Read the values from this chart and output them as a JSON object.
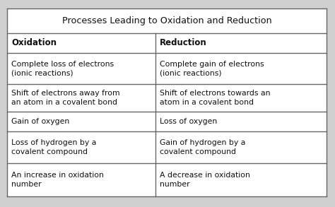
{
  "title": "Processes Leading to Oxidation and Reduction",
  "col_headers": [
    "Oxidation",
    "Reduction"
  ],
  "rows": [
    [
      "Complete loss of electrons\n(ionic reactions)",
      "Complete gain of electrons\n(ionic reactions)"
    ],
    [
      "Shift of electrons away from\nan atom in a covalent bond",
      "Shift of electrons towards an\natom in a covalent bond"
    ],
    [
      "Gain of oxygen",
      "Loss of oxygen"
    ],
    [
      "Loss of hydrogen by a\ncovalent compound",
      "Gain of hydrogen by a\ncovalent compound"
    ],
    [
      "An increase in oxidation\nnumber",
      "A decrease in oxidation\nnumber"
    ]
  ],
  "outer_bg": "#d0d0d0",
  "table_bg": "#ffffff",
  "border_color": "#666666",
  "text_color": "#111111",
  "header_fontsize": 8.5,
  "cell_fontsize": 7.8,
  "title_fontsize": 9.2,
  "col_split": 0.465
}
